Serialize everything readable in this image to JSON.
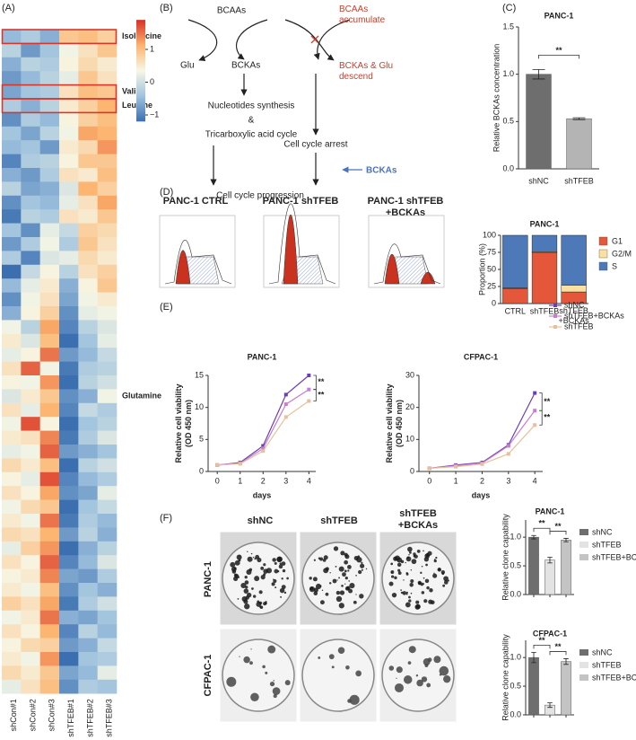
{
  "panel_labels": [
    "(A)",
    "(B)",
    "(C)",
    "(D)",
    "(E)",
    "(F)"
  ],
  "diagram": {
    "nodes": [
      "BCAAs",
      "BCAAs\naccumulate",
      "Glu",
      "BCKAs",
      "BCKAs & Glu\ndescend",
      "Nucleotides synthesis",
      "&",
      "Tricarboxylic acid cycle",
      "Cell cycle arrest",
      "BCKAs",
      "Cell cycle progression"
    ]
  },
  "flow": {
    "titles": [
      "PANC-1 CTRL",
      "PANC-1 shTFEB",
      "PANC-1 shTFEB\n+BCKAs"
    ]
  },
  "colony": {
    "columns": [
      "shNC",
      "shTFEB",
      "shTFEB\n+BCKAs"
    ],
    "rows": [
      "PANC-1",
      "CFPAC-1"
    ]
  },
  "chart_data": [
    {
      "type": "heatmap",
      "columns": [
        "shCon#1",
        "shCon#2",
        "shCon#3",
        "shTFEB#1",
        "shTFEB#2",
        "shTFEB#3"
      ],
      "values": [
        [
          -0.5,
          -0.3,
          -0.6,
          0.9,
          1.0,
          0.8
        ],
        [
          -0.2,
          -0.8,
          -0.4,
          0.3,
          0.6,
          0.9
        ],
        [
          -0.6,
          -0.2,
          -0.3,
          0.4,
          0.7,
          0.5
        ],
        [
          -0.8,
          -0.5,
          -0.2,
          0.2,
          0.9,
          0.6
        ],
        [
          -0.7,
          -0.4,
          -0.3,
          0.6,
          1.0,
          0.9
        ],
        [
          -0.3,
          -0.6,
          -0.2,
          0.5,
          0.8,
          1.1
        ],
        [
          -0.9,
          -0.3,
          -0.5,
          0.4,
          0.8,
          1.0
        ],
        [
          -0.4,
          -0.7,
          -0.2,
          0.3,
          1.2,
          1.1
        ],
        [
          -0.5,
          -0.4,
          -0.8,
          0.5,
          0.7,
          1.3
        ],
        [
          -1.0,
          -0.3,
          -0.2,
          0.4,
          0.9,
          0.9
        ],
        [
          -0.6,
          -0.8,
          -0.3,
          0.6,
          0.5,
          1.0
        ],
        [
          -0.2,
          -0.7,
          -0.6,
          0.1,
          1.1,
          0.8
        ],
        [
          -0.9,
          -0.4,
          -0.5,
          0.2,
          0.6,
          1.2
        ],
        [
          -1.1,
          -0.2,
          -0.3,
          0.6,
          0.5,
          0.9
        ],
        [
          -0.4,
          -0.9,
          0.2,
          -0.1,
          0.8,
          0.7
        ],
        [
          -0.8,
          -0.3,
          0.3,
          -0.3,
          0.9,
          0.6
        ],
        [
          -0.3,
          -1.0,
          0.1,
          0.2,
          0.7,
          0.5
        ],
        [
          -1.2,
          -0.1,
          0.4,
          -0.2,
          0.6,
          0.8
        ],
        [
          -0.5,
          0.2,
          0.5,
          -0.6,
          0.4,
          0.9
        ],
        [
          -0.9,
          0.3,
          0.6,
          -0.7,
          0.3,
          0.5
        ],
        [
          -0.6,
          0.4,
          0.8,
          -0.9,
          0.2,
          0.3
        ],
        [
          0.3,
          -0.2,
          1.2,
          -1.0,
          -0.2,
          0.1
        ],
        [
          0.5,
          0.1,
          1.0,
          -1.2,
          -0.4,
          0.2
        ],
        [
          0.2,
          0.4,
          1.5,
          -0.8,
          -0.5,
          -0.1
        ],
        [
          0.6,
          1.6,
          0.3,
          -1.1,
          -0.3,
          -0.2
        ],
        [
          0.4,
          0.3,
          1.3,
          -1.3,
          -0.2,
          0.0
        ],
        [
          0.1,
          0.5,
          0.9,
          -0.9,
          -0.6,
          0.3
        ],
        [
          0.6,
          0.2,
          1.1,
          -1.0,
          -0.1,
          -0.3
        ],
        [
          0.3,
          1.7,
          0.4,
          -1.2,
          -0.4,
          -0.2
        ],
        [
          0.5,
          0.6,
          1.4,
          -1.1,
          -0.3,
          0.1
        ],
        [
          0.2,
          0.3,
          1.6,
          -0.8,
          -0.6,
          -0.4
        ],
        [
          0.7,
          0.5,
          1.0,
          -1.3,
          -0.2,
          0.0
        ],
        [
          0.4,
          0.2,
          1.7,
          -1.0,
          -0.5,
          -0.3
        ],
        [
          0.6,
          0.4,
          1.2,
          -0.9,
          -0.7,
          0.2
        ],
        [
          0.3,
          0.7,
          0.9,
          -1.4,
          -0.4,
          -0.1
        ],
        [
          0.5,
          0.3,
          1.5,
          -1.1,
          -0.3,
          -0.5
        ],
        [
          0.7,
          0.6,
          1.1,
          -0.8,
          -0.2,
          -0.6
        ],
        [
          0.2,
          0.8,
          1.3,
          -1.2,
          -0.6,
          -0.2
        ],
        [
          0.6,
          0.4,
          1.6,
          -1.0,
          -0.5,
          0.1
        ],
        [
          0.4,
          0.5,
          1.4,
          -0.7,
          -0.8,
          -0.3
        ],
        [
          0.5,
          0.3,
          1.0,
          -0.9,
          -0.4,
          -0.6
        ],
        [
          0.8,
          0.6,
          1.2,
          -1.1,
          -0.3,
          0.0
        ],
        [
          0.3,
          0.5,
          1.5,
          -0.6,
          -0.7,
          -0.4
        ],
        [
          0.6,
          0.4,
          1.1,
          -1.0,
          -0.2,
          -0.5
        ],
        [
          0.4,
          0.7,
          0.8,
          -0.8,
          -0.6,
          -0.1
        ],
        [
          0.5,
          0.3,
          1.3,
          -1.2,
          -0.4,
          -0.3
        ],
        [
          0.7,
          0.5,
          0.9,
          -0.7,
          -0.5,
          0.2
        ],
        [
          0.2,
          0.6,
          1.0,
          -0.9,
          -0.3,
          -0.4
        ]
      ],
      "labels": [
        {
          "row": 0,
          "text": "Isoleucine",
          "color": "#d9362b",
          "boxed": true
        },
        {
          "row": 4,
          "text": "Valine",
          "color": "#d9362b",
          "boxed": true
        },
        {
          "row": 5,
          "text": "Leucine",
          "color": "#d9362b",
          "boxed": true
        },
        {
          "row": 26,
          "text": "Glutamine",
          "color": "#3f78c0",
          "boxed": false
        }
      ],
      "clim": [
        -1.2,
        1.9
      ],
      "colormap": [
        "#3b6fb0",
        "#a0c3de",
        "#f7f7e6",
        "#fcb46e",
        "#d73027"
      ],
      "colorbar_ticks": [
        1,
        0,
        {
          "value": -1,
          "label": "−1"
        }
      ]
    },
    {
      "type": "bar",
      "title": "PANC-1",
      "categories": [
        "shNC",
        "shTFEB"
      ],
      "values": [
        1.0,
        0.53
      ],
      "errors": [
        0.05,
        0.01
      ],
      "colors": [
        "#6e6e6e",
        "#b4b4b4"
      ],
      "ylabel": "Relative BCKAs concentration",
      "ylim": [
        0,
        1.5
      ],
      "yticks": [
        {
          "value": 0,
          "label": "0.0"
        },
        0.5,
        {
          "value": 1,
          "label": "1.0"
        },
        1.5
      ],
      "annotations": [
        "**"
      ]
    },
    {
      "type": "stacked_bar",
      "title": "PANC-1",
      "categories": [
        "CTRL",
        "shTFEB",
        "shTFEB\n+BCKAs"
      ],
      "series": [
        {
          "name": "G1",
          "color": "#e4573a",
          "values": [
            22,
            75,
            17
          ]
        },
        {
          "name": "G2/M",
          "color": "#fbe0a0",
          "values": [
            1,
            1,
            10
          ]
        },
        {
          "name": "S",
          "color": "#4e79b8",
          "values": [
            77,
            24,
            73
          ]
        }
      ],
      "ylabel": "Proportion (%)",
      "ylim": [
        0,
        100
      ],
      "yticks": [
        0,
        25,
        50,
        75,
        100
      ],
      "legend": "right"
    },
    {
      "type": "line",
      "title": "PANC-1",
      "x": [
        0,
        1,
        2,
        3,
        4
      ],
      "series": [
        {
          "name": "shNC",
          "color": "#6a3fb5",
          "values": [
            1,
            1.4,
            4,
            12,
            15
          ]
        },
        {
          "name": "shTFEB+BCKAs",
          "color": "#c77dd0",
          "values": [
            1,
            1.3,
            3.6,
            10.5,
            12.8
          ]
        },
        {
          "name": "shTFEB",
          "color": "#e6c09a",
          "values": [
            1,
            1.2,
            3.2,
            8.5,
            11
          ]
        }
      ],
      "xlabel": "days",
      "ylabel": "Relative cell viability\n(OD 450 nm)",
      "xlim": [
        -0.4,
        4.3
      ],
      "xticks": [
        0,
        1,
        2,
        3,
        4
      ],
      "ylim": [
        0,
        15
      ],
      "yticks": [
        0,
        5,
        10,
        15
      ],
      "annotations": [
        "**",
        "**"
      ]
    },
    {
      "type": "line",
      "title": "CFPAC-1",
      "x": [
        0,
        1,
        2,
        3,
        4
      ],
      "series": [
        {
          "name": "shNC",
          "color": "#6a3fb5",
          "values": [
            1,
            2,
            2.8,
            8.3,
            24.5
          ]
        },
        {
          "name": "shTFEB+BCKAs",
          "color": "#c77dd0",
          "values": [
            1,
            1.8,
            2.6,
            8,
            19
          ]
        },
        {
          "name": "shTFEB",
          "color": "#e6c09a",
          "values": [
            1,
            1.5,
            2.3,
            5.5,
            14.5
          ]
        }
      ],
      "xlabel": "days",
      "ylabel": "Relative cell viability\n(OD 450 nm)",
      "xlim": [
        -0.4,
        4.3
      ],
      "xticks": [
        0,
        1,
        2,
        3,
        4
      ],
      "ylim": [
        0,
        30
      ],
      "yticks": [
        0,
        10,
        20,
        30
      ],
      "annotations": [
        "**",
        "**"
      ],
      "legend": "right"
    },
    {
      "type": "bar",
      "title": "PANC-1",
      "categories": [
        "shNC",
        "shTFEB",
        "shTFEB+BCKAs"
      ],
      "values": [
        1.0,
        0.6,
        0.95
      ],
      "errors": [
        0.03,
        0.05,
        0.03
      ],
      "colors": [
        "#6e6e6e",
        "#e3e3e3",
        "#c4c4c4"
      ],
      "ylabel": "Relative clone capability",
      "ylim": [
        0,
        1.3
      ],
      "yticks": [
        {
          "value": 0,
          "label": "0.0"
        },
        0.5,
        {
          "value": 1,
          "label": "1.0"
        }
      ],
      "annotations": [
        "**",
        "**"
      ],
      "legend": "right"
    },
    {
      "type": "bar",
      "title": "CFPAC-1",
      "categories": [
        "shNC",
        "shTFEB",
        "shTFEB+BCKAs"
      ],
      "values": [
        1.0,
        0.17,
        0.93
      ],
      "errors": [
        0.09,
        0.04,
        0.05
      ],
      "colors": [
        "#6e6e6e",
        "#e3e3e3",
        "#c4c4c4"
      ],
      "ylabel": "Relative clone capability",
      "ylim": [
        0,
        1.3
      ],
      "yticks": [
        {
          "value": 0,
          "label": "0.0"
        },
        0.5,
        {
          "value": 1,
          "label": "1.0"
        }
      ],
      "annotations": [
        "**",
        "**"
      ],
      "legend": "right"
    }
  ]
}
